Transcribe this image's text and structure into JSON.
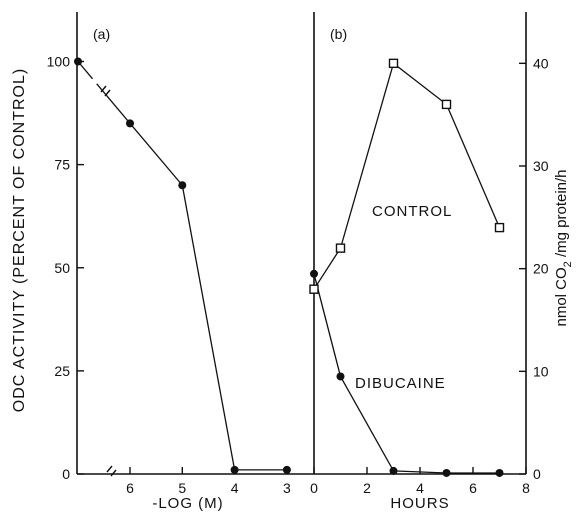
{
  "chart_data": [
    {
      "panel": "(a)",
      "type": "line",
      "xlabel": "-LOG (M)",
      "ylabel": "ODC ACTIVITY (PERCENT OF CONTROL)",
      "x_axis_reversed": true,
      "x_axis_break": true,
      "xlim": [
        7,
        3
      ],
      "ylim": [
        0,
        112
      ],
      "x_ticks": [
        6,
        5,
        4,
        3
      ],
      "y_ticks": [
        0,
        25,
        50,
        75,
        100
      ],
      "points": [
        {
          "x": "control",
          "y": 100
        },
        {
          "x": 6,
          "y": 85
        },
        {
          "x": 5,
          "y": 70
        },
        {
          "x": 4,
          "y": 1
        },
        {
          "x": 3,
          "y": 1
        }
      ],
      "marker": "filled-circle",
      "grid": false
    },
    {
      "panel": "(b)",
      "type": "line",
      "xlabel": "HOURS",
      "ylabel": "nmol CO2 /mg protein/h",
      "xlim": [
        0,
        8
      ],
      "ylim": [
        0,
        45
      ],
      "x_ticks": [
        0,
        2,
        4,
        6,
        8
      ],
      "y_ticks": [
        0,
        10,
        20,
        30,
        40
      ],
      "series": [
        {
          "name": "CONTROL",
          "marker": "open-square",
          "points": [
            {
              "x": 0,
              "y": 18
            },
            {
              "x": 1,
              "y": 22
            },
            {
              "x": 3,
              "y": 40
            },
            {
              "x": 5,
              "y": 36
            },
            {
              "x": 7,
              "y": 24
            }
          ]
        },
        {
          "name": "DIBUCAINE",
          "marker": "filled-circle",
          "points": [
            {
              "x": 0,
              "y": 19.5
            },
            {
              "x": 1,
              "y": 9.5
            },
            {
              "x": 3,
              "y": 0.3
            },
            {
              "x": 5,
              "y": 0.1
            },
            {
              "x": 7,
              "y": 0.1
            }
          ]
        }
      ],
      "grid": false
    }
  ]
}
